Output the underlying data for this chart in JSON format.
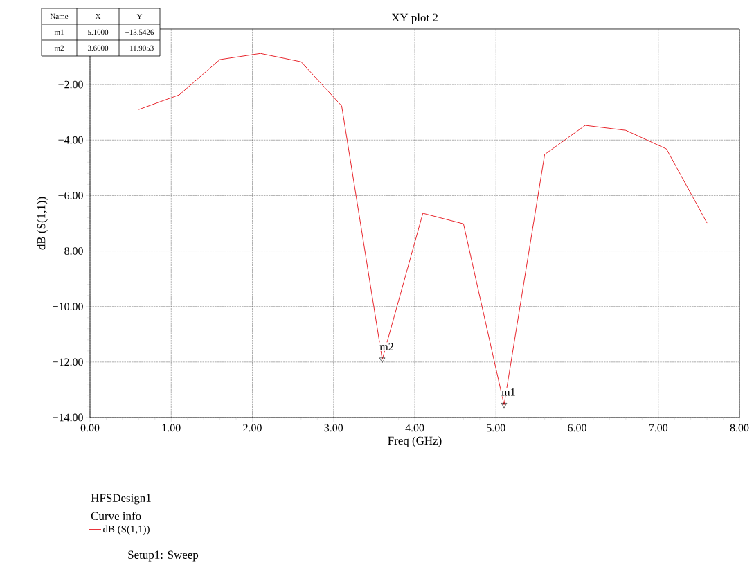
{
  "chart_data": {
    "type": "line",
    "title": "XY plot 2",
    "xlabel": "Freq (GHz)",
    "ylabel": "dB (S(1,1))",
    "x": [
      0.6,
      1.1,
      1.6,
      2.1,
      2.6,
      3.1,
      3.6,
      4.1,
      4.6,
      5.1,
      5.6,
      6.1,
      6.6,
      7.1,
      7.6
    ],
    "series": [
      {
        "name": "dB (S(1,1))",
        "color": "#e8262d",
        "values": [
          -2.9,
          -2.37,
          -1.1,
          -0.88,
          -1.18,
          -2.77,
          -11.9053,
          -6.64,
          -7.02,
          -13.5426,
          -4.52,
          -3.47,
          -3.65,
          -4.32,
          -6.99
        ]
      },
      {
        "type": "scatter",
        "marker": "triangle",
        "color": "#000000",
        "x": [
          3.6,
          5.1
        ],
        "values": [
          -11.9053,
          -13.5426
        ]
      }
    ],
    "xlim": [
      0,
      8
    ],
    "ylim": [
      -14,
      0
    ],
    "xticks": [
      {
        "value": 0,
        "label": "0.00"
      },
      {
        "value": 1,
        "label": "1.00"
      },
      {
        "value": 2,
        "label": "2.00"
      },
      {
        "value": 3,
        "label": "3.00"
      },
      {
        "value": 4,
        "label": "4.00"
      },
      {
        "value": 5,
        "label": "5.00"
      },
      {
        "value": 6,
        "label": "6.00"
      },
      {
        "value": 7,
        "label": "7.00"
      },
      {
        "value": 8,
        "label": "8.00"
      }
    ],
    "yticks": [
      {
        "value": -14,
        "label": "−14.00"
      },
      {
        "value": -12,
        "label": "−12.00"
      },
      {
        "value": -10,
        "label": "−10.00"
      },
      {
        "value": -8,
        "label": "−8.00"
      },
      {
        "value": -6,
        "label": "−6.00"
      },
      {
        "value": -4,
        "label": "−4.00"
      },
      {
        "value": -2,
        "label": "−2.00"
      }
    ],
    "grid": true,
    "legend": "bottom left",
    "line_style": "solid",
    "marker": "none",
    "annotations": [
      "Name",
      "X",
      "Y",
      "m1",
      "5.1000",
      "−13.5426",
      "m2",
      "3.6000",
      "−11.9053",
      "HFSDesign1",
      "Curve info",
      "Setup1: Sweep",
      {
        "text": "m1",
        "x": 5.1,
        "y": -13.5426
      },
      {
        "text": "m2",
        "x": 3.6,
        "y": -11.9053
      }
    ]
  }
}
